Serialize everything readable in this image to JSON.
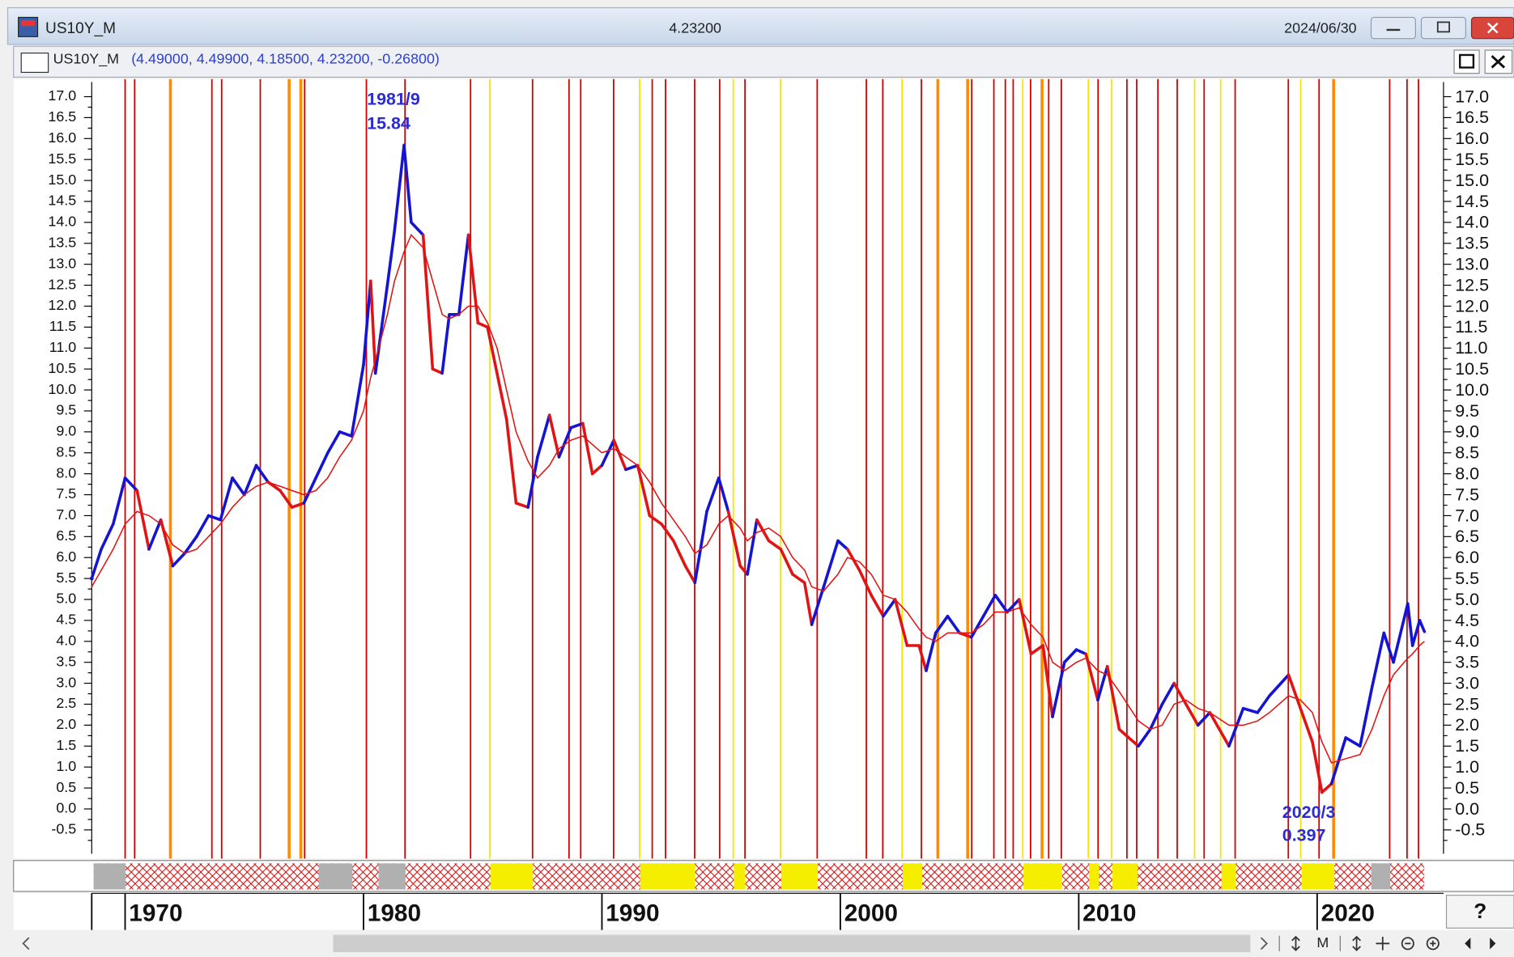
{
  "window": {
    "title": "US10Y_M",
    "last": "4.23200",
    "date": "2024/06/30"
  },
  "legend": {
    "symbol": "US10Y_M",
    "values": "(4.49000, 4.49900, 4.18500, 4.23200, -0.26800)"
  },
  "toolbar": {
    "mode": "M",
    "help": "?"
  },
  "chart_data": {
    "type": "line",
    "x": [
      1968.6,
      1969.0,
      1969.5,
      1970.0,
      1970.5,
      1971.0,
      1971.5,
      1972.0,
      1972.5,
      1973.0,
      1973.5,
      1974.0,
      1974.5,
      1975.0,
      1975.5,
      1976.0,
      1976.5,
      1977.0,
      1977.5,
      1978.0,
      1978.5,
      1979.0,
      1979.5,
      1980.0,
      1980.3,
      1980.5,
      1981.0,
      1981.3,
      1981.7,
      1982.0,
      1982.5,
      1982.9,
      1983.3,
      1983.6,
      1984.0,
      1984.4,
      1984.8,
      1985.2,
      1985.6,
      1986.0,
      1986.4,
      1986.9,
      1987.3,
      1987.8,
      1988.2,
      1988.7,
      1989.2,
      1989.6,
      1990.0,
      1990.5,
      1991.0,
      1991.5,
      1992.0,
      1992.5,
      1993.0,
      1993.5,
      1993.9,
      1994.4,
      1994.9,
      1995.3,
      1995.8,
      1996.1,
      1996.5,
      1997.0,
      1997.5,
      1998.0,
      1998.5,
      1998.8,
      1999.3,
      1999.9,
      2000.3,
      2000.8,
      2001.3,
      2001.8,
      2002.3,
      2002.8,
      2003.3,
      2003.6,
      2004.0,
      2004.5,
      2005.0,
      2005.5,
      2006.0,
      2006.5,
      2007.0,
      2007.5,
      2008.0,
      2008.5,
      2008.9,
      2009.4,
      2009.9,
      2010.3,
      2010.8,
      2011.2,
      2011.7,
      2012.5,
      2013.0,
      2013.5,
      2014.0,
      2014.5,
      2015.0,
      2015.5,
      2016.3,
      2016.9,
      2017.5,
      2018.0,
      2018.8,
      2019.3,
      2019.8,
      2020.2,
      2020.6,
      2021.2,
      2021.8,
      2022.3,
      2022.8,
      2023.2,
      2023.8,
      2024.0,
      2024.3,
      2024.5
    ],
    "series": [
      {
        "name": "US10Y_M",
        "color": "#1414d2",
        "down_color": "#e01414",
        "values": [
          5.5,
          6.2,
          6.8,
          7.9,
          7.6,
          6.2,
          6.9,
          5.8,
          6.1,
          6.5,
          7.0,
          6.9,
          7.9,
          7.5,
          8.2,
          7.8,
          7.6,
          7.2,
          7.3,
          7.9,
          8.5,
          9.0,
          8.9,
          10.6,
          12.6,
          10.4,
          12.5,
          13.8,
          15.84,
          14.0,
          13.7,
          10.5,
          10.4,
          11.8,
          11.8,
          13.7,
          11.6,
          11.5,
          10.4,
          9.3,
          7.3,
          7.2,
          8.4,
          9.4,
          8.4,
          9.1,
          9.2,
          8.0,
          8.2,
          8.8,
          8.1,
          8.2,
          7.0,
          6.8,
          6.4,
          5.8,
          5.4,
          7.1,
          7.9,
          7.1,
          5.8,
          5.6,
          6.9,
          6.4,
          6.2,
          5.6,
          5.4,
          4.4,
          5.3,
          6.4,
          6.2,
          5.7,
          5.1,
          4.6,
          5.0,
          3.9,
          3.9,
          3.3,
          4.2,
          4.6,
          4.2,
          4.1,
          4.6,
          5.1,
          4.7,
          5.0,
          3.7,
          3.9,
          2.2,
          3.5,
          3.8,
          3.7,
          2.6,
          3.4,
          1.9,
          1.5,
          1.9,
          2.5,
          3.0,
          2.5,
          2.0,
          2.3,
          1.5,
          2.4,
          2.3,
          2.7,
          3.2,
          2.4,
          1.6,
          0.397,
          0.6,
          1.7,
          1.5,
          2.9,
          4.2,
          3.5,
          4.9,
          3.9,
          4.5,
          4.232
        ]
      },
      {
        "color": "#e01414",
        "values": [
          5.3,
          5.7,
          6.2,
          6.8,
          7.1,
          7.0,
          6.8,
          6.3,
          6.1,
          6.2,
          6.5,
          6.8,
          7.2,
          7.5,
          7.7,
          7.8,
          7.7,
          7.6,
          7.5,
          7.6,
          7.9,
          8.4,
          8.8,
          9.5,
          10.3,
          10.7,
          11.8,
          12.6,
          13.3,
          13.7,
          13.4,
          12.6,
          11.8,
          11.7,
          11.8,
          12.0,
          12.0,
          11.6,
          11.0,
          10.0,
          9.0,
          8.3,
          7.9,
          8.2,
          8.6,
          8.8,
          8.9,
          8.7,
          8.5,
          8.6,
          8.4,
          8.2,
          7.8,
          7.3,
          6.9,
          6.5,
          6.1,
          6.3,
          6.8,
          7.0,
          6.7,
          6.4,
          6.6,
          6.7,
          6.5,
          6.0,
          5.7,
          5.3,
          5.2,
          5.6,
          6.0,
          5.9,
          5.6,
          5.1,
          5.0,
          4.7,
          4.3,
          4.1,
          4.0,
          4.2,
          4.2,
          4.2,
          4.4,
          4.7,
          4.7,
          4.8,
          4.4,
          4.1,
          3.5,
          3.3,
          3.5,
          3.6,
          3.3,
          3.2,
          2.8,
          2.1,
          1.9,
          2.0,
          2.5,
          2.6,
          2.4,
          2.3,
          2.0,
          2.0,
          2.1,
          2.3,
          2.7,
          2.6,
          2.3,
          1.6,
          1.1,
          1.2,
          1.3,
          1.9,
          2.7,
          3.2,
          3.6,
          3.7,
          3.9,
          4.0
        ]
      }
    ],
    "xlim": [
      1968.6,
      2025.3
    ],
    "xticks": [
      1970,
      1980,
      1990,
      2000,
      2010,
      2020
    ],
    "ylim": [
      -1.07,
      17.35
    ],
    "yticks": [
      -0.5,
      {
        "value": 0,
        "label": "0.0"
      },
      0.5,
      {
        "value": 1,
        "label": "1.0"
      },
      1.5,
      {
        "value": 2,
        "label": "2.0"
      },
      2.5,
      {
        "value": 3,
        "label": "3.0"
      },
      3.5,
      {
        "value": 4,
        "label": "4.0"
      },
      4.5,
      {
        "value": 5,
        "label": "5.0"
      },
      5.5,
      {
        "value": 6,
        "label": "6.0"
      },
      6.5,
      {
        "value": 7,
        "label": "7.0"
      },
      7.5,
      {
        "value": 8,
        "label": "8.0"
      },
      8.5,
      {
        "value": 9,
        "label": "9.0"
      },
      9.5,
      {
        "value": 10,
        "label": "10.0"
      },
      10.5,
      {
        "value": 11,
        "label": "11.0"
      },
      11.5,
      {
        "value": 12,
        "label": "12.0"
      },
      12.5,
      {
        "value": 13,
        "label": "13.0"
      },
      13.5,
      {
        "value": 14,
        "label": "14.0"
      },
      14.5,
      {
        "value": 15,
        "label": "15.0"
      },
      15.5,
      {
        "value": 16,
        "label": "16.0"
      },
      16.5,
      {
        "value": 17,
        "label": "17.0"
      }
    ],
    "annotations": [
      {
        "text": "1981/9"
      },
      {
        "text": "15.84"
      },
      {
        "text": "2020/3"
      },
      {
        "text": "0.397"
      }
    ],
    "event_lines": {
      "x": [
        1970.0,
        1970.4,
        1971.9,
        1973.64,
        1974.05,
        1975.67,
        1976.88,
        1977.37,
        1977.53,
        1980.12,
        1981.74,
        1984.49,
        1985.3,
        1987.09,
        1988.62,
        1989.11,
        1990.49,
        1991.58,
        1992.11,
        1992.67,
        1993.89,
        1994.94,
        1995.51,
        1996.0,
        1997.49,
        1999.03,
        2001.09,
        2001.78,
        2002.59,
        2003.4,
        2004.09,
        2005.34,
        2005.51,
        2006.44,
        2006.92,
        2007.25,
        2007.65,
        2007.98,
        2008.46,
        2008.74,
        2009.27,
        2010.4,
        2010.81,
        2011.38,
        2012.02,
        2012.43,
        2013.32,
        2014.13,
        2014.86,
        2015.26,
        2015.95,
        2016.56,
        2018.79,
        2019.31,
        2020.08,
        2020.69,
        2023.04,
        2023.77,
        2024.25
      ],
      "colors": [
        "#d40000",
        "#d40000",
        "#ff8c00",
        "#d40000",
        "#d40000",
        "#d40000",
        "#ff8c00",
        "#ff8c00",
        "#d40000",
        "#d40000",
        "#d40000",
        "#d40000",
        "#f5e600",
        "#d40000",
        "#d40000",
        "#d40000",
        "#d40000",
        "#f5e600",
        "#d40000",
        "#d40000",
        "#d40000",
        "#d40000",
        "#f5e600",
        "#d40000",
        "#f5e600",
        "#d40000",
        "#d40000",
        "#d40000",
        "#f5e600",
        "#d40000",
        "#ff8c00",
        "#ff8c00",
        "#d40000",
        "#d40000",
        "#d40000",
        "#d40000",
        "#f5e600",
        "#d40000",
        "#ff8c00",
        "#d40000",
        "#d40000",
        "#f5e600",
        "#d40000",
        "#f5e600",
        "#d40000",
        "#d40000",
        "#d40000",
        "#d40000",
        "#f5e600",
        "#d40000",
        "#f5e600",
        "#d40000",
        "#d40000",
        "#f5e600",
        "#d40000",
        "#ff8c00",
        "#d40000",
        "#d40000",
        "#d40000"
      ]
    }
  }
}
